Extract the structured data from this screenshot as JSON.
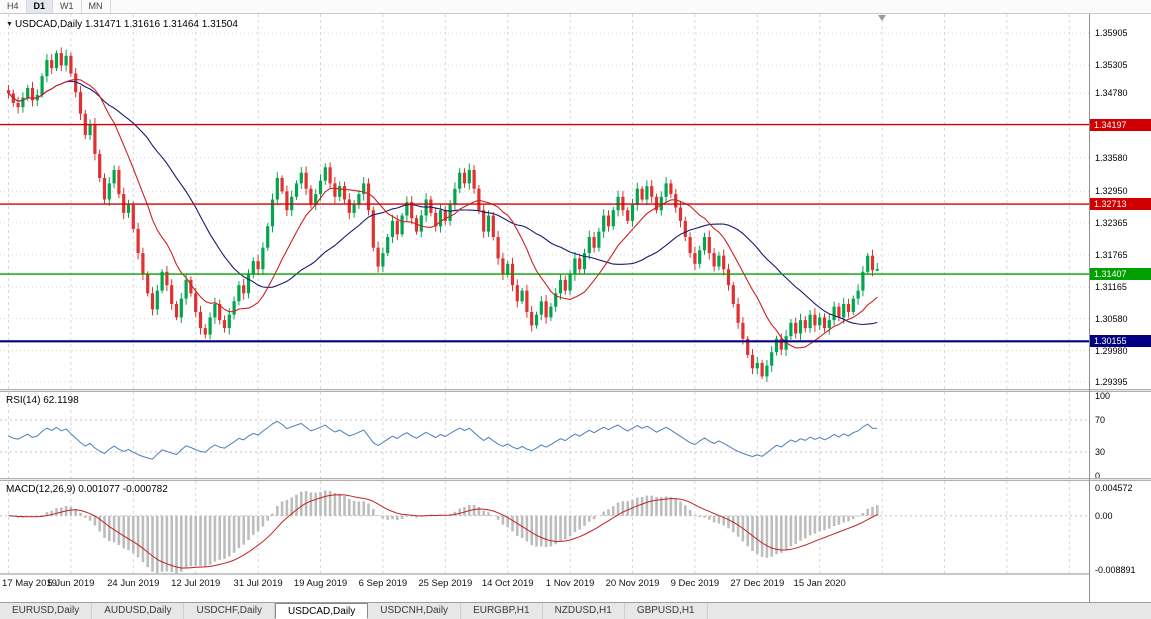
{
  "toolbar": {
    "timeframes": [
      {
        "label": "H4",
        "active": false
      },
      {
        "label": "D1",
        "active": true
      },
      {
        "label": "W1",
        "active": false
      },
      {
        "label": "MN",
        "active": false
      }
    ]
  },
  "chart": {
    "symbol_label": "USDCAD,Daily",
    "quote": {
      "open": "1.31471",
      "high": "1.31616",
      "low": "1.31464",
      "close": "1.31504"
    }
  },
  "indicators": {
    "rsi": {
      "label": "RSI(14)",
      "value": "62.1198"
    },
    "macd": {
      "label": "MACD(12,26,9)",
      "value_main": "0.001077",
      "value_signal": "-0.000782"
    }
  },
  "price_scale": {
    "main_ticks": [
      "1.35905",
      "1.35305",
      "1.34780",
      "1.33580",
      "1.32950",
      "1.32365",
      "1.31765",
      "1.31165",
      "1.30580",
      "1.29980",
      "1.29395"
    ],
    "rsi_ticks": [
      "100",
      "70",
      "30",
      "0"
    ],
    "macd_ticks": [
      "0.004572",
      "0.00",
      "-0.008891"
    ]
  },
  "tabs": [
    {
      "label": "EURUSD,Daily",
      "active": false
    },
    {
      "label": "AUDUSD,Daily",
      "active": false
    },
    {
      "label": "USDCHF,Daily",
      "active": false
    },
    {
      "label": "USDCAD,Daily",
      "active": true
    },
    {
      "label": "USDCNH,Daily",
      "active": false
    },
    {
      "label": "EURGBP,H1",
      "active": false
    },
    {
      "label": "NZDUSD,H1",
      "active": false
    },
    {
      "label": "GBPUSD,H1",
      "active": false
    }
  ],
  "chart_data": {
    "type": "candlestick",
    "symbol": "USDCAD",
    "timeframe": "Daily",
    "ylim": [
      1.2926,
      1.3626
    ],
    "last_candle": {
      "open": 1.31471,
      "high": 1.31616,
      "low": 1.31464,
      "close": 1.31504
    },
    "date_axis": [
      "17 May 2019",
      "5 Jun 2019",
      "24 Jun 2019",
      "12 Jul 2019",
      "31 Jul 2019",
      "19 Aug 2019",
      "6 Sep 2019",
      "25 Sep 2019",
      "14 Oct 2019",
      "1 Nov 2019",
      "20 Nov 2019",
      "9 Dec 2019",
      "27 Dec 2019",
      "15 Jan 2020"
    ],
    "lines": [
      {
        "price": 1.34197,
        "label": "1.34197",
        "color": "#D00000",
        "width": 1.4
      },
      {
        "price": 1.32713,
        "label": "1.32713",
        "color": "#D00000",
        "width": 1.4
      },
      {
        "price": 1.31407,
        "label": "1.31407",
        "color": "#00A000",
        "width": 1.4
      },
      {
        "price": 1.30155,
        "label": "1.30155",
        "color": "#000080",
        "width": 2.2
      }
    ],
    "rsi_levels": [
      70,
      30
    ],
    "colors": {
      "up": "#00A64F",
      "down": "#E03131",
      "ma_fast": "#CC2222",
      "ma_slow": "#191970",
      "rsi": "#4A7EBB",
      "macd_hist": "#BDBDBD",
      "macd_signal": "#C22222",
      "grid": "#D9D9D9"
    },
    "closes": [
      1.3478,
      1.346,
      1.3452,
      1.347,
      1.3488,
      1.3465,
      1.3475,
      1.351,
      1.354,
      1.3525,
      1.3553,
      1.353,
      1.3548,
      1.3515,
      1.348,
      1.344,
      1.34,
      1.342,
      1.3365,
      1.332,
      1.328,
      1.331,
      1.3335,
      1.329,
      1.3255,
      1.327,
      1.3225,
      1.318,
      1.314,
      1.3105,
      1.3075,
      1.311,
      1.3145,
      1.312,
      1.3085,
      1.306,
      1.3095,
      1.313,
      1.3105,
      1.307,
      1.304,
      1.3028,
      1.306,
      1.3085,
      1.3055,
      1.304,
      1.3065,
      1.309,
      1.312,
      1.3105,
      1.314,
      1.3165,
      1.315,
      1.319,
      1.323,
      1.328,
      1.332,
      1.3295,
      1.326,
      1.3285,
      1.331,
      1.333,
      1.33,
      1.327,
      1.329,
      1.3315,
      1.334,
      1.331,
      1.3285,
      1.3305,
      1.328,
      1.3255,
      1.327,
      1.329,
      1.331,
      1.326,
      1.319,
      1.3155,
      1.318,
      1.321,
      1.324,
      1.3215,
      1.325,
      1.3275,
      1.3245,
      1.322,
      1.325,
      1.328,
      1.3255,
      1.323,
      1.326,
      1.324,
      1.327,
      1.33,
      1.333,
      1.331,
      1.3335,
      1.33,
      1.326,
      1.322,
      1.325,
      1.321,
      1.317,
      1.314,
      1.316,
      1.312,
      1.309,
      1.311,
      1.307,
      1.3045,
      1.3065,
      1.309,
      1.306,
      1.308,
      1.3105,
      1.313,
      1.311,
      1.314,
      1.317,
      1.315,
      1.318,
      1.321,
      1.319,
      1.322,
      1.325,
      1.323,
      1.326,
      1.3285,
      1.326,
      1.324,
      1.327,
      1.33,
      1.328,
      1.3305,
      1.3285,
      1.326,
      1.3285,
      1.331,
      1.329,
      1.3265,
      1.324,
      1.321,
      1.318,
      1.316,
      1.3185,
      1.321,
      1.318,
      1.3155,
      1.3175,
      1.315,
      1.312,
      1.3085,
      1.305,
      1.302,
      1.299,
      1.2965,
      1.2975,
      1.295,
      1.297,
      1.2995,
      1.302,
      1.3,
      1.3025,
      1.305,
      1.303,
      1.3055,
      1.304,
      1.3065,
      1.3045,
      1.306,
      1.304,
      1.3055,
      1.308,
      1.306,
      1.3085,
      1.307,
      1.3095,
      1.311,
      1.3145,
      1.3175,
      1.3148,
      1.31504
    ]
  }
}
